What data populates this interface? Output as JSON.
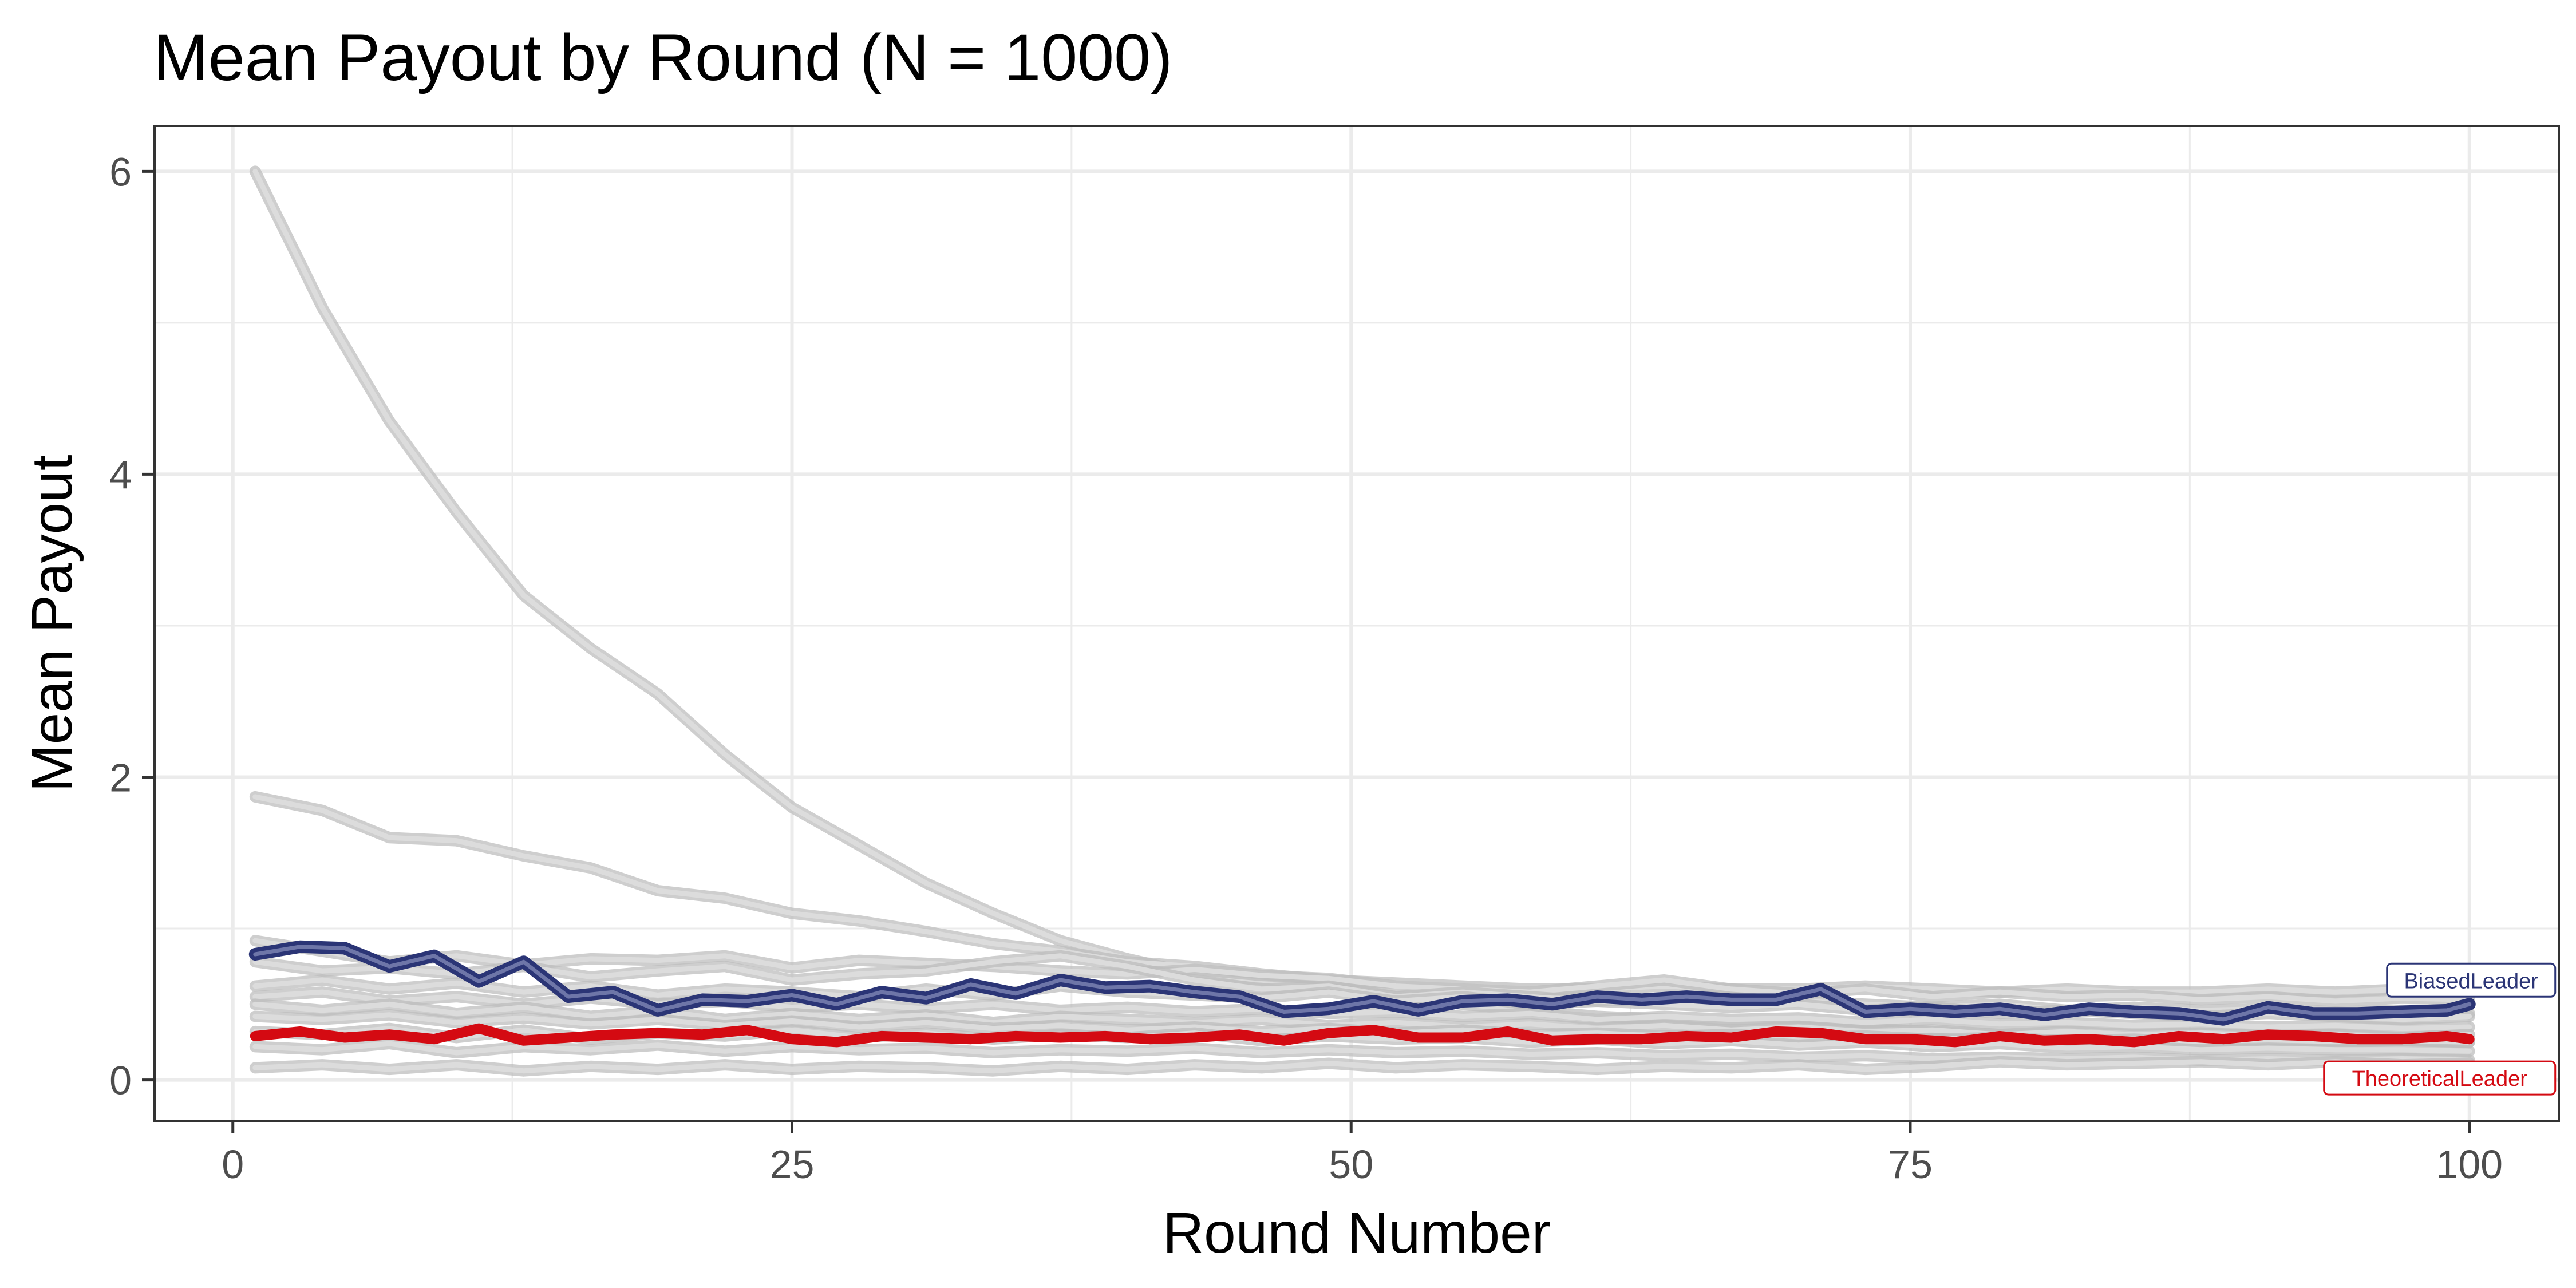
{
  "chart_data": {
    "type": "line",
    "title": "Mean Payout by Round (N = 1000)",
    "xlabel": "Round Number",
    "ylabel": "Mean Payout",
    "xlim": [
      -3.5,
      104
    ],
    "ylim": [
      -0.27,
      6.3
    ],
    "x_ticks": [
      0,
      25,
      50,
      75,
      100
    ],
    "x_tick_labels": [
      "0",
      "25",
      "50",
      "75",
      "100"
    ],
    "y_ticks": [
      0,
      2,
      4,
      6
    ],
    "y_tick_labels": [
      "0",
      "2",
      "4",
      "6"
    ],
    "x_minor_ticks": [
      12.5,
      37.5,
      62.5,
      87.5
    ],
    "y_minor_ticks": [
      1,
      3,
      5
    ],
    "grid": true,
    "legend": "none (direct labels at line ends)",
    "colors": {
      "background_series": "#bebebe",
      "BiasedLeader": "#2b3576",
      "TheoreticalLeader": "#d40a12",
      "grid": "#ebebeb",
      "panel_border": "#333333"
    },
    "series": [
      {
        "name": "BiasedLeader",
        "highlight": true,
        "color": "#2b3576",
        "x": [
          1,
          3,
          5,
          7,
          9,
          11,
          13,
          15,
          17,
          19,
          21,
          23,
          25,
          27,
          29,
          31,
          33,
          35,
          37,
          39,
          41,
          43,
          45,
          47,
          49,
          51,
          53,
          55,
          57,
          59,
          61,
          63,
          65,
          67,
          69,
          71,
          73,
          75,
          77,
          79,
          81,
          83,
          85,
          87,
          89,
          91,
          93,
          95,
          97,
          99,
          100
        ],
        "y": [
          0.83,
          0.88,
          0.87,
          0.75,
          0.82,
          0.65,
          0.78,
          0.55,
          0.58,
          0.46,
          0.53,
          0.52,
          0.56,
          0.5,
          0.58,
          0.54,
          0.63,
          0.57,
          0.66,
          0.61,
          0.62,
          0.58,
          0.55,
          0.45,
          0.47,
          0.52,
          0.46,
          0.52,
          0.53,
          0.5,
          0.55,
          0.53,
          0.55,
          0.53,
          0.53,
          0.6,
          0.45,
          0.47,
          0.45,
          0.47,
          0.43,
          0.47,
          0.45,
          0.44,
          0.4,
          0.48,
          0.44,
          0.44,
          0.45,
          0.46,
          0.5
        ]
      },
      {
        "name": "TheoreticalLeader",
        "highlight": true,
        "color": "#d40a12",
        "x": [
          1,
          3,
          5,
          7,
          9,
          11,
          13,
          15,
          17,
          19,
          21,
          23,
          25,
          27,
          29,
          31,
          33,
          35,
          37,
          39,
          41,
          43,
          45,
          47,
          49,
          51,
          53,
          55,
          57,
          59,
          61,
          63,
          65,
          67,
          69,
          71,
          73,
          75,
          77,
          79,
          81,
          83,
          85,
          87,
          89,
          91,
          93,
          95,
          97,
          99,
          100
        ],
        "y": [
          0.29,
          0.32,
          0.28,
          0.3,
          0.27,
          0.34,
          0.26,
          0.28,
          0.3,
          0.31,
          0.3,
          0.33,
          0.27,
          0.25,
          0.29,
          0.28,
          0.27,
          0.29,
          0.28,
          0.29,
          0.27,
          0.28,
          0.3,
          0.26,
          0.31,
          0.33,
          0.28,
          0.28,
          0.32,
          0.26,
          0.27,
          0.27,
          0.29,
          0.28,
          0.32,
          0.31,
          0.27,
          0.27,
          0.25,
          0.29,
          0.26,
          0.27,
          0.25,
          0.29,
          0.27,
          0.3,
          0.29,
          0.27,
          0.27,
          0.29,
          0.27
        ]
      },
      {
        "x": [
          1,
          4,
          7,
          10,
          13,
          16,
          19,
          22,
          25,
          28,
          31,
          34,
          37,
          40,
          43,
          46,
          49,
          52,
          55,
          58,
          61,
          64,
          67,
          70,
          73,
          76,
          79,
          82,
          85,
          88,
          91,
          94,
          97,
          100
        ],
        "y": [
          6.0,
          5.1,
          4.35,
          3.75,
          3.2,
          2.85,
          2.55,
          2.15,
          1.8,
          1.55,
          1.3,
          1.1,
          0.92,
          0.8,
          0.7,
          0.66,
          0.6,
          0.55,
          0.5,
          0.46,
          0.42,
          0.4,
          0.38,
          0.36,
          0.34,
          0.32,
          0.3,
          0.3,
          0.28,
          0.27,
          0.27,
          0.26,
          0.26,
          0.25
        ]
      },
      {
        "x": [
          1,
          4,
          7,
          10,
          13,
          16,
          19,
          22,
          25,
          28,
          31,
          34,
          37,
          40,
          43,
          46,
          49,
          52,
          55,
          58,
          61,
          64,
          67,
          70,
          73,
          76,
          79,
          82,
          85,
          88,
          91,
          94,
          97,
          100
        ],
        "y": [
          1.87,
          1.78,
          1.6,
          1.58,
          1.48,
          1.4,
          1.25,
          1.2,
          1.1,
          1.05,
          0.98,
          0.9,
          0.85,
          0.78,
          0.75,
          0.7,
          0.66,
          0.64,
          0.62,
          0.6,
          0.6,
          0.62,
          0.6,
          0.6,
          0.62,
          0.6,
          0.58,
          0.6,
          0.58,
          0.58,
          0.6,
          0.58,
          0.6,
          0.58
        ]
      },
      {
        "x": [
          1,
          4,
          7,
          10,
          13,
          16,
          19,
          22,
          25,
          28,
          31,
          34,
          37,
          40,
          43,
          46,
          49,
          52,
          55,
          58,
          61,
          64,
          67,
          70,
          73,
          76,
          79,
          82,
          85,
          88,
          91,
          94,
          97,
          100
        ],
        "y": [
          0.92,
          0.85,
          0.78,
          0.82,
          0.76,
          0.8,
          0.79,
          0.82,
          0.74,
          0.79,
          0.77,
          0.75,
          0.72,
          0.7,
          0.73,
          0.69,
          0.67,
          0.62,
          0.6,
          0.58,
          0.62,
          0.66,
          0.6,
          0.57,
          0.6,
          0.55,
          0.58,
          0.55,
          0.56,
          0.53,
          0.55,
          0.52,
          0.54,
          0.53
        ]
      },
      {
        "x": [
          1,
          4,
          7,
          10,
          13,
          16,
          19,
          22,
          25,
          28,
          31,
          34,
          37,
          40,
          43,
          46,
          49,
          52,
          55,
          58,
          61,
          64,
          67,
          70,
          73,
          76,
          79,
          82,
          85,
          88,
          91,
          94,
          97,
          100
        ],
        "y": [
          0.78,
          0.72,
          0.74,
          0.7,
          0.75,
          0.68,
          0.72,
          0.75,
          0.66,
          0.7,
          0.72,
          0.78,
          0.82,
          0.75,
          0.66,
          0.6,
          0.62,
          0.55,
          0.58,
          0.55,
          0.52,
          0.54,
          0.5,
          0.52,
          0.5,
          0.48,
          0.5,
          0.46,
          0.48,
          0.46,
          0.47,
          0.45,
          0.46,
          0.44
        ]
      },
      {
        "x": [
          1,
          4,
          7,
          10,
          13,
          16,
          19,
          22,
          25,
          28,
          31,
          34,
          37,
          40,
          43,
          46,
          49,
          52,
          55,
          58,
          61,
          64,
          67,
          70,
          73,
          76,
          79,
          82,
          85,
          88,
          91,
          94,
          97,
          100
        ],
        "y": [
          0.62,
          0.66,
          0.6,
          0.64,
          0.58,
          0.62,
          0.56,
          0.6,
          0.58,
          0.55,
          0.6,
          0.56,
          0.62,
          0.58,
          0.56,
          0.54,
          0.58,
          0.52,
          0.55,
          0.5,
          0.52,
          0.5,
          0.48,
          0.5,
          0.46,
          0.48,
          0.44,
          0.46,
          0.44,
          0.42,
          0.44,
          0.42,
          0.4,
          0.42
        ]
      },
      {
        "x": [
          1,
          4,
          7,
          10,
          13,
          16,
          19,
          22,
          25,
          28,
          31,
          34,
          37,
          40,
          43,
          46,
          49,
          52,
          55,
          58,
          61,
          64,
          67,
          70,
          73,
          76,
          79,
          82,
          85,
          88,
          91,
          94,
          97,
          100
        ],
        "y": [
          0.55,
          0.58,
          0.52,
          0.55,
          0.5,
          0.54,
          0.5,
          0.52,
          0.48,
          0.5,
          0.47,
          0.5,
          0.46,
          0.48,
          0.45,
          0.47,
          0.44,
          0.45,
          0.42,
          0.44,
          0.4,
          0.42,
          0.4,
          0.41,
          0.38,
          0.4,
          0.37,
          0.38,
          0.36,
          0.37,
          0.35,
          0.36,
          0.34,
          0.35
        ]
      },
      {
        "x": [
          1,
          4,
          7,
          10,
          13,
          16,
          19,
          22,
          25,
          28,
          31,
          34,
          37,
          40,
          43,
          46,
          49,
          52,
          55,
          58,
          61,
          64,
          67,
          70,
          73,
          76,
          79,
          82,
          85,
          88,
          91,
          94,
          97,
          100
        ],
        "y": [
          0.5,
          0.46,
          0.5,
          0.44,
          0.48,
          0.42,
          0.46,
          0.4,
          0.44,
          0.4,
          0.43,
          0.38,
          0.42,
          0.4,
          0.38,
          0.4,
          0.36,
          0.38,
          0.35,
          0.37,
          0.34,
          0.36,
          0.33,
          0.35,
          0.32,
          0.33,
          0.3,
          0.32,
          0.3,
          0.31,
          0.29,
          0.3,
          0.28,
          0.3
        ]
      },
      {
        "x": [
          1,
          4,
          7,
          10,
          13,
          16,
          19,
          22,
          25,
          28,
          31,
          34,
          37,
          40,
          43,
          46,
          49,
          52,
          55,
          58,
          61,
          64,
          67,
          70,
          73,
          76,
          79,
          82,
          85,
          88,
          91,
          94,
          97,
          100
        ],
        "y": [
          0.42,
          0.4,
          0.43,
          0.38,
          0.41,
          0.37,
          0.4,
          0.36,
          0.39,
          0.35,
          0.38,
          0.34,
          0.36,
          0.33,
          0.35,
          0.32,
          0.34,
          0.31,
          0.33,
          0.3,
          0.31,
          0.29,
          0.3,
          0.28,
          0.29,
          0.27,
          0.28,
          0.26,
          0.27,
          0.25,
          0.26,
          0.25,
          0.26,
          0.25
        ]
      },
      {
        "x": [
          1,
          4,
          7,
          10,
          13,
          16,
          19,
          22,
          25,
          28,
          31,
          34,
          37,
          40,
          43,
          46,
          49,
          52,
          55,
          58,
          61,
          64,
          67,
          70,
          73,
          76,
          79,
          82,
          85,
          88,
          91,
          94,
          97,
          100
        ],
        "y": [
          0.32,
          0.3,
          0.34,
          0.28,
          0.33,
          0.27,
          0.31,
          0.29,
          0.33,
          0.28,
          0.31,
          0.27,
          0.3,
          0.28,
          0.31,
          0.26,
          0.29,
          0.27,
          0.28,
          0.25,
          0.27,
          0.24,
          0.26,
          0.23,
          0.25,
          0.22,
          0.24,
          0.21,
          0.22,
          0.2,
          0.21,
          0.2,
          0.2,
          0.19
        ]
      },
      {
        "x": [
          1,
          4,
          7,
          10,
          13,
          16,
          19,
          22,
          25,
          28,
          31,
          34,
          37,
          40,
          43,
          46,
          49,
          52,
          55,
          58,
          61,
          64,
          67,
          70,
          73,
          76,
          79,
          82,
          85,
          88,
          91,
          94,
          97,
          100
        ],
        "y": [
          0.22,
          0.2,
          0.24,
          0.18,
          0.22,
          0.2,
          0.23,
          0.19,
          0.22,
          0.2,
          0.21,
          0.18,
          0.2,
          0.19,
          0.21,
          0.18,
          0.2,
          0.18,
          0.19,
          0.17,
          0.18,
          0.16,
          0.17,
          0.15,
          0.16,
          0.14,
          0.15,
          0.14,
          0.15,
          0.13,
          0.14,
          0.13,
          0.14,
          0.13
        ]
      },
      {
        "x": [
          1,
          4,
          7,
          10,
          13,
          16,
          19,
          22,
          25,
          28,
          31,
          34,
          37,
          40,
          43,
          46,
          49,
          52,
          55,
          58,
          61,
          64,
          67,
          70,
          73,
          76,
          79,
          82,
          85,
          88,
          91,
          94,
          97,
          100
        ],
        "y": [
          0.08,
          0.1,
          0.07,
          0.1,
          0.06,
          0.09,
          0.07,
          0.1,
          0.07,
          0.09,
          0.08,
          0.06,
          0.09,
          0.07,
          0.1,
          0.08,
          0.11,
          0.08,
          0.1,
          0.09,
          0.07,
          0.09,
          0.08,
          0.1,
          0.07,
          0.09,
          0.12,
          0.1,
          0.11,
          0.12,
          0.1,
          0.12,
          0.1,
          0.11
        ]
      }
    ],
    "line_labels": [
      {
        "series": "BiasedLeader",
        "text": "BiasedLeader"
      },
      {
        "series": "TheoreticalLeader",
        "text": "TheoreticalLeader"
      }
    ]
  }
}
